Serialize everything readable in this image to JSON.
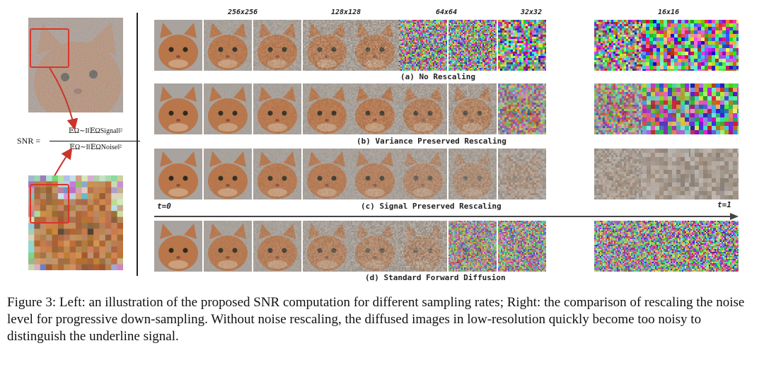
{
  "left_panel": {
    "formula": {
      "lhs": "SNR =",
      "numerator": "𝔼Ω∼I‖𝔼ΩSignal‖²",
      "denominator": "𝔼Ω∼I‖𝔼ΩNoise‖²"
    }
  },
  "resolution_labels": [
    "256x256",
    "128x128",
    "64x64",
    "32x32",
    "16x16"
  ],
  "rows": [
    {
      "caption": "(a) No Rescaling"
    },
    {
      "caption": "(b) Variance Preserved Rescaling"
    },
    {
      "caption": "(c) Signal Preserved Rescaling"
    },
    {
      "caption": "(d) Standard Forward Diffusion"
    }
  ],
  "timeline": {
    "start": "t=0",
    "end": "t=1"
  },
  "figure_caption": "Figure 3: Left: an illustration of the proposed SNR computation for different sampling rates; Right: the comparison of rescaling the noise level for progressive down-sampling. Without noise rescaling, the diffused images in low-resolution quickly become too noisy to distinguish the underline signal.",
  "colors": {
    "highlight": "#d9362b",
    "fur": "#b8774a",
    "background_gray": "#9e9a96"
  }
}
